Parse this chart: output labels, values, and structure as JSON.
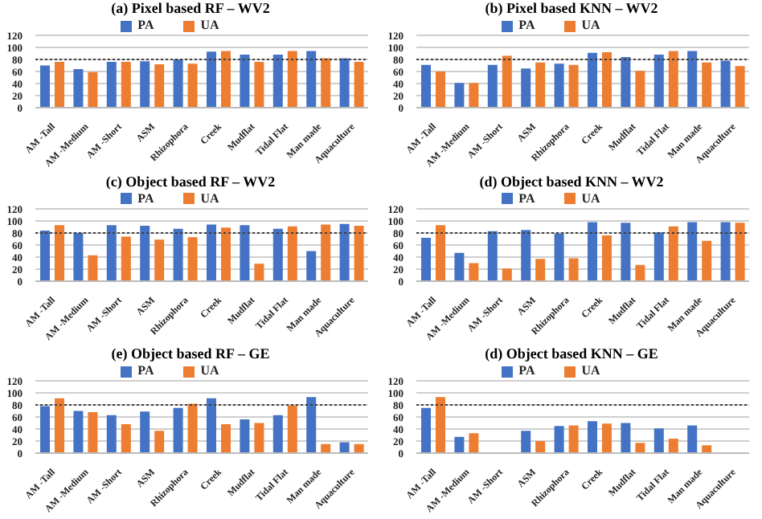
{
  "chart_data": [
    {
      "type": "bar",
      "title": "(a) Pixel based RF – WV2",
      "categories": [
        "AM -Tall",
        "AM -Medium",
        "AM -Short",
        "ASM",
        "Rhizophora",
        "Creek",
        "Mudflat",
        "Tidal Flat",
        "Man made",
        "Aquaculture"
      ],
      "series": [
        {
          "name": "PA",
          "color": "#4472c4",
          "values": [
            70,
            64,
            76,
            77,
            80,
            93,
            88,
            88,
            94,
            82
          ]
        },
        {
          "name": "UA",
          "color": "#ed7d31",
          "values": [
            76,
            59,
            76,
            72,
            73,
            94,
            76,
            94,
            82,
            76
          ]
        }
      ],
      "ylim": [
        0,
        120
      ],
      "yticks": [
        0,
        20,
        40,
        60,
        80,
        100,
        120
      ],
      "grid": "y",
      "legend": "top",
      "ref_lines": [
        {
          "axis": "y",
          "value": 80,
          "color": "#404040",
          "line_style": "dotted"
        }
      ]
    },
    {
      "type": "bar",
      "title": "(b) Pixel based KNN – WV2",
      "categories": [
        "AM -Tall",
        "AM -Medium",
        "AM -Short",
        "ASM",
        "Rhizophora",
        "Creek",
        "Mudflat",
        "Tidal Flat",
        "Man made",
        "Aquaculture"
      ],
      "series": [
        {
          "name": "PA",
          "color": "#4472c4",
          "values": [
            71,
            41,
            71,
            65,
            73,
            91,
            84,
            88,
            94,
            78
          ]
        },
        {
          "name": "UA",
          "color": "#ed7d31",
          "values": [
            60,
            41,
            86,
            75,
            71,
            92,
            61,
            94,
            75,
            69
          ]
        }
      ],
      "ylim": [
        0,
        120
      ],
      "yticks": [
        0,
        20,
        40,
        60,
        80,
        100,
        120
      ],
      "grid": "y",
      "legend": "top",
      "ref_lines": [
        {
          "axis": "y",
          "value": 80,
          "color": "#404040",
          "line_style": "dotted"
        }
      ]
    },
    {
      "type": "bar",
      "title": "(c) Object based RF – WV2",
      "categories": [
        "AM -Tall",
        "AM -Medium",
        "AM -Short",
        "ASM",
        "Rhizophora",
        "Creek",
        "Mudflat",
        "Tidal Flat",
        "Man made",
        "Aquaculture"
      ],
      "series": [
        {
          "name": "PA",
          "color": "#4472c4",
          "values": [
            84,
            80,
            93,
            92,
            87,
            94,
            93,
            87,
            50,
            95
          ]
        },
        {
          "name": "UA",
          "color": "#ed7d31",
          "values": [
            93,
            43,
            74,
            69,
            73,
            89,
            29,
            91,
            94,
            92
          ]
        }
      ],
      "ylim": [
        0,
        120
      ],
      "yticks": [
        0,
        20,
        40,
        60,
        80,
        100,
        120
      ],
      "grid": "y",
      "legend": "top",
      "ref_lines": [
        {
          "axis": "y",
          "value": 80,
          "color": "#404040",
          "line_style": "dotted"
        }
      ]
    },
    {
      "type": "bar",
      "title": "(d) Object based KNN – WV2",
      "categories": [
        "AM -Tall",
        "AM -Medium",
        "AM -Short",
        "ASM",
        "Rhizophora",
        "Creek",
        "Mudflat",
        "Tidal Flat",
        "Man made",
        "Aquaculture"
      ],
      "series": [
        {
          "name": "PA",
          "color": "#4472c4",
          "values": [
            72,
            47,
            83,
            85,
            79,
            98,
            97,
            81,
            98,
            98
          ]
        },
        {
          "name": "UA",
          "color": "#ed7d31",
          "values": [
            93,
            30,
            21,
            37,
            38,
            76,
            27,
            91,
            67,
            97
          ]
        }
      ],
      "ylim": [
        0,
        120
      ],
      "yticks": [
        0,
        20,
        40,
        60,
        80,
        100,
        120
      ],
      "grid": "y",
      "legend": "top",
      "ref_lines": [
        {
          "axis": "y",
          "value": 80,
          "color": "#404040",
          "line_style": "dotted"
        }
      ]
    },
    {
      "type": "bar",
      "title": "(e) Object based RF –  GE",
      "categories": [
        "AM -Tall",
        "AM -Medium",
        "AM -Short",
        "ASM",
        "Rhizophora",
        "Creek",
        "Mudflat",
        "Tidal Flat",
        "Man made",
        "Aquaculture"
      ],
      "series": [
        {
          "name": "PA",
          "color": "#4472c4",
          "values": [
            78,
            70,
            63,
            69,
            75,
            91,
            56,
            63,
            93,
            18
          ]
        },
        {
          "name": "UA",
          "color": "#ed7d31",
          "values": [
            91,
            68,
            48,
            37,
            82,
            48,
            50,
            79,
            15,
            15
          ]
        }
      ],
      "ylim": [
        0,
        120
      ],
      "yticks": [
        0,
        20,
        40,
        60,
        80,
        100,
        120
      ],
      "grid": "y",
      "legend": "top",
      "ref_lines": [
        {
          "axis": "y",
          "value": 80,
          "color": "#404040",
          "line_style": "dotted"
        }
      ]
    },
    {
      "type": "bar",
      "title": "(d) Object based KNN – GE",
      "categories": [
        "AM -Tall",
        "AM -Medium",
        "AM -Short",
        "ASM",
        "Rhizophora",
        "Creek",
        "Mudflat",
        "Tidal Flat",
        "Man made",
        "Aquaculture"
      ],
      "series": [
        {
          "name": "PA",
          "color": "#4472c4",
          "values": [
            75,
            27,
            null,
            37,
            45,
            53,
            50,
            41,
            46,
            null
          ]
        },
        {
          "name": "UA",
          "color": "#ed7d31",
          "values": [
            93,
            33,
            null,
            20,
            46,
            49,
            17,
            24,
            13,
            null
          ]
        }
      ],
      "ylim": [
        0,
        120
      ],
      "yticks": [
        0,
        20,
        40,
        60,
        80,
        100,
        120
      ],
      "grid": "y",
      "legend": "top",
      "ref_lines": [
        {
          "axis": "y",
          "value": 80,
          "color": "#404040",
          "line_style": "dotted"
        }
      ]
    }
  ]
}
